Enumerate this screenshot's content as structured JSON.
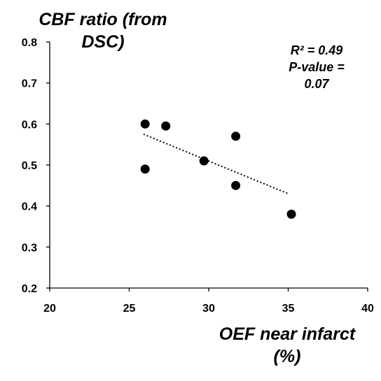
{
  "chart_data": {
    "type": "scatter",
    "title": "",
    "xlabel": "OEF near infarct (%)",
    "ylabel": "CBF ratio (from DSC)",
    "xlim": [
      20,
      40
    ],
    "ylim": [
      0.2,
      0.8
    ],
    "x_ticks": [
      "20",
      "25",
      "30",
      "35",
      "40"
    ],
    "y_ticks": [
      "0.2",
      "0.3",
      "0.4",
      "0.5",
      "0.6",
      "0.7",
      "0.8"
    ],
    "grid": false,
    "points": [
      {
        "x": 26.0,
        "y": 0.6
      },
      {
        "x": 27.3,
        "y": 0.595
      },
      {
        "x": 26.0,
        "y": 0.49
      },
      {
        "x": 29.7,
        "y": 0.51
      },
      {
        "x": 31.7,
        "y": 0.57
      },
      {
        "x": 31.7,
        "y": 0.45
      },
      {
        "x": 35.2,
        "y": 0.38
      }
    ],
    "trendline": {
      "style": "dotted",
      "x_start": 25.9,
      "y_start": 0.575,
      "x_end": 35.0,
      "y_end": 0.43
    },
    "annotation": {
      "r2_label": "R² = 0.49",
      "pvalue_label": "P-value =",
      "pvalue_value": "0.07"
    }
  }
}
